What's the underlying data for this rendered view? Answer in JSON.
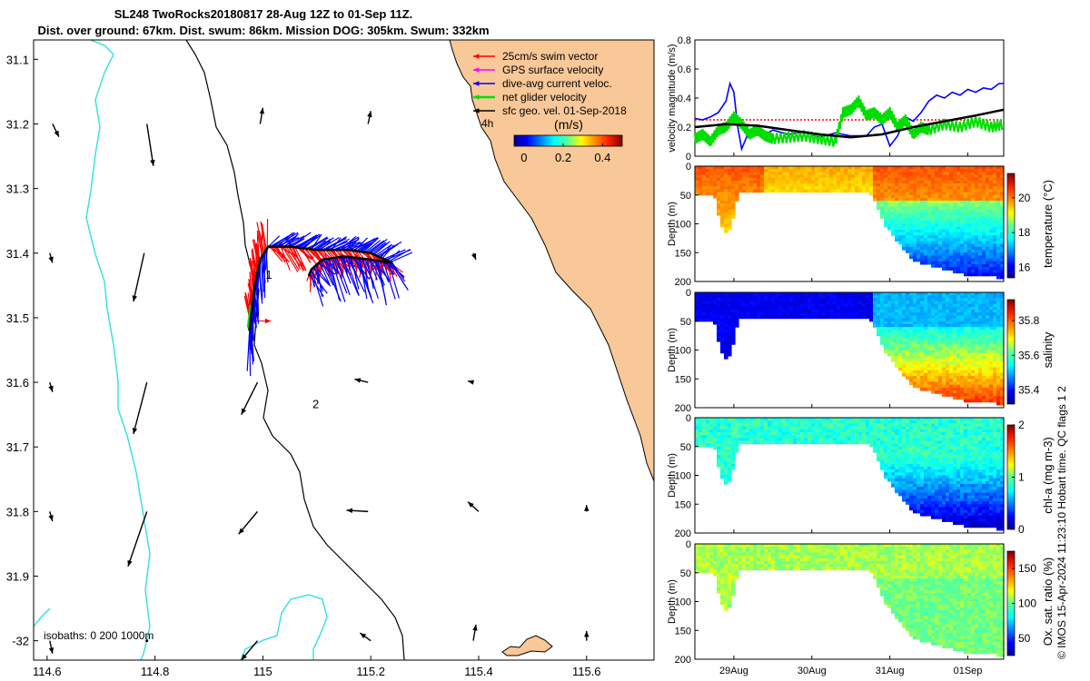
{
  "title": {
    "line1": "SL248 TwoRocks20180817 28-Aug 12Z to 01-Sep 11Z.",
    "line2": "Dist. over ground: 67km. Dist. swum: 86km. Mission DOG: 305km. Swum: 332km"
  },
  "credit": "© IMOS 15-Apr-2024 11:23:10 Hobart time. QC flags 1  2",
  "colors": {
    "land": "#f9c898",
    "isobath_shallow": "#000000",
    "isobath_deep": "#40e0e0",
    "swim": "#ff0000",
    "gps": "#ff00ff",
    "current": "#0000ff",
    "net": "#00dd00",
    "geo": "#000000"
  },
  "chart_data": [
    {
      "type": "map",
      "x_ticks": [
        "114.6",
        "114.8",
        "115",
        "115.2",
        "115.4",
        "115.6"
      ],
      "x_tick_values": [
        114.6,
        114.8,
        115.0,
        115.2,
        115.4,
        115.6
      ],
      "y_ticks": [
        "31.1",
        "31.2",
        "31.3",
        "31.4",
        "31.5",
        "31.6",
        "31.7",
        "31.8",
        "31.9",
        "-32"
      ],
      "y_tick_values": [
        -31.1,
        -31.2,
        -31.3,
        -31.4,
        -31.5,
        -31.6,
        -31.7,
        -31.8,
        -31.9,
        -32.0
      ],
      "xlim": [
        114.575,
        115.725
      ],
      "ylim": [
        -32.03,
        -31.07
      ],
      "legend": [
        {
          "label": "25cm/s swim vector",
          "color": "#ff0000"
        },
        {
          "label": "GPS surface velocity",
          "color": "#ff00ff"
        },
        {
          "label": "dive-avg current veloc.",
          "color": "#0000ff"
        },
        {
          "label": "net glider velocity",
          "color": "#00dd00"
        },
        {
          "label": "sfc geo. vel. 01-Sep-2018",
          "color": "#000000"
        }
      ],
      "legend_extra_label": "4h",
      "colorbar": {
        "label": "(m/s)",
        "ticks": [
          "0",
          "0.2",
          "0.4"
        ],
        "tick_values": [
          0,
          0.2,
          0.4
        ],
        "range": [
          -0.05,
          0.5
        ]
      },
      "isobath_label": "isobaths: 0   200  1000m",
      "annotations": [
        {
          "text": "1",
          "lon": 115.005,
          "lat": -31.44
        },
        {
          "text": "2",
          "lon": 115.092,
          "lat": -31.64
        }
      ],
      "geo_vectors": [
        {
          "lon": 114.61,
          "lat": -31.2,
          "u": 0.012,
          "v": -0.02
        },
        {
          "lon": 114.785,
          "lat": -31.2,
          "u": 0.012,
          "v": -0.065
        },
        {
          "lon": 114.995,
          "lat": -31.2,
          "u": 0.005,
          "v": 0.025
        },
        {
          "lon": 115.195,
          "lat": -31.2,
          "u": 0.005,
          "v": 0.02
        },
        {
          "lon": 114.605,
          "lat": -31.4,
          "u": 0.005,
          "v": -0.015
        },
        {
          "lon": 114.78,
          "lat": -31.4,
          "u": -0.02,
          "v": -0.075
        },
        {
          "lon": 115.39,
          "lat": -31.4,
          "u": 0.005,
          "v": -0.01
        },
        {
          "lon": 114.605,
          "lat": -31.6,
          "u": 0.005,
          "v": -0.015
        },
        {
          "lon": 114.785,
          "lat": -31.6,
          "u": -0.025,
          "v": -0.08
        },
        {
          "lon": 114.99,
          "lat": -31.6,
          "u": -0.03,
          "v": -0.05
        },
        {
          "lon": 115.195,
          "lat": -31.6,
          "u": -0.025,
          "v": 0.005
        },
        {
          "lon": 115.39,
          "lat": -31.6,
          "u": -0.01,
          "v": 0.002
        },
        {
          "lon": 114.605,
          "lat": -31.8,
          "u": 0.005,
          "v": -0.015
        },
        {
          "lon": 114.785,
          "lat": -31.8,
          "u": -0.035,
          "v": -0.085
        },
        {
          "lon": 114.99,
          "lat": -31.8,
          "u": -0.035,
          "v": -0.035
        },
        {
          "lon": 115.195,
          "lat": -31.8,
          "u": -0.04,
          "v": 0.002
        },
        {
          "lon": 115.4,
          "lat": -31.8,
          "u": -0.02,
          "v": 0.015
        },
        {
          "lon": 115.6,
          "lat": -31.8,
          "u": 0.0,
          "v": 0.01
        },
        {
          "lon": 114.605,
          "lat": -32.0,
          "u": 0.005,
          "v": -0.02
        },
        {
          "lon": 114.785,
          "lat": -32.0,
          "u": 0.0,
          "v": 0.0
        },
        {
          "lon": 114.99,
          "lat": -32.0,
          "u": -0.03,
          "v": -0.03
        },
        {
          "lon": 115.2,
          "lat": -32.0,
          "u": -0.02,
          "v": 0.012
        },
        {
          "lon": 115.39,
          "lat": -32.0,
          "u": 0.005,
          "v": 0.025
        },
        {
          "lon": 115.6,
          "lat": -32.0,
          "u": 0.0,
          "v": 0.015
        }
      ],
      "glider_track": [
        {
          "lon": 114.975,
          "lat": -31.52
        },
        {
          "lon": 114.985,
          "lat": -31.45
        },
        {
          "lon": 114.995,
          "lat": -31.41
        },
        {
          "lon": 115.01,
          "lat": -31.39
        },
        {
          "lon": 115.05,
          "lat": -31.39
        },
        {
          "lon": 115.1,
          "lat": -31.395
        },
        {
          "lon": 115.16,
          "lat": -31.395
        },
        {
          "lon": 115.2,
          "lat": -31.4
        },
        {
          "lon": 115.24,
          "lat": -31.415
        },
        {
          "lon": 115.2,
          "lat": -31.41
        },
        {
          "lon": 115.15,
          "lat": -31.405
        },
        {
          "lon": 115.11,
          "lat": -31.41
        },
        {
          "lon": 115.09,
          "lat": -31.425
        },
        {
          "lon": 115.085,
          "lat": -31.435
        }
      ]
    },
    {
      "type": "line",
      "ylabel": "velocity magnitude (m/s)",
      "ylim": [
        0,
        0.8
      ],
      "y_ticks": [
        "0",
        "0.2",
        "0.4",
        "0.6",
        "0.8"
      ],
      "y_tick_values": [
        0,
        0.2,
        0.4,
        0.6,
        0.8
      ],
      "x_ticks": [
        "29Aug",
        "30Aug",
        "31Aug",
        "01Sep"
      ],
      "x_tick_values": [
        0.5,
        1.5,
        2.5,
        3.5
      ],
      "xlim": [
        0,
        3.96
      ],
      "series": [
        {
          "name": "25cm/s swim vector",
          "color": "#ff0000",
          "t": [
            0,
            3.96
          ],
          "values": [
            0.25,
            0.25
          ]
        },
        {
          "name": "dive-avg current veloc.",
          "color": "#0000ff",
          "t": [
            0,
            0.1,
            0.2,
            0.3,
            0.4,
            0.45,
            0.5,
            0.55,
            0.6,
            0.7,
            0.8,
            0.9,
            1.0,
            1.2,
            1.4,
            1.6,
            1.8,
            2.0,
            2.2,
            2.3,
            2.4,
            2.5,
            2.6,
            2.7,
            2.8,
            2.9,
            3.0,
            3.1,
            3.2,
            3.3,
            3.4,
            3.5,
            3.6,
            3.7,
            3.8,
            3.9,
            3.96
          ],
          "values": [
            0.26,
            0.25,
            0.27,
            0.3,
            0.38,
            0.5,
            0.44,
            0.2,
            0.05,
            0.18,
            0.2,
            0.15,
            0.18,
            0.15,
            0.17,
            0.13,
            0.16,
            0.14,
            0.14,
            0.2,
            0.22,
            0.07,
            0.14,
            0.27,
            0.24,
            0.3,
            0.38,
            0.42,
            0.4,
            0.44,
            0.42,
            0.46,
            0.44,
            0.47,
            0.46,
            0.5,
            0.5
          ]
        },
        {
          "name": "net glider velocity",
          "color": "#00dd00",
          "t": [
            0,
            0.1,
            0.2,
            0.3,
            0.4,
            0.5,
            0.6,
            0.7,
            0.8,
            0.9,
            1.0,
            1.2,
            1.4,
            1.6,
            1.8,
            1.9,
            2.0,
            2.1,
            2.2,
            2.3,
            2.4,
            2.5,
            2.6,
            2.7,
            2.8,
            2.9,
            3.0,
            3.2,
            3.4,
            3.6,
            3.8,
            3.96
          ],
          "values": [
            0.12,
            0.15,
            0.1,
            0.18,
            0.2,
            0.27,
            0.22,
            0.15,
            0.18,
            0.14,
            0.12,
            0.13,
            0.14,
            0.12,
            0.1,
            0.3,
            0.32,
            0.38,
            0.28,
            0.3,
            0.25,
            0.3,
            0.2,
            0.25,
            0.15,
            0.2,
            0.18,
            0.22,
            0.2,
            0.24,
            0.2,
            0.22
          ]
        },
        {
          "name": "sfc geo. vel. 01-Sep-2018",
          "color": "#000000",
          "t": [
            0,
            0.4,
            0.8,
            1.2,
            1.6,
            2.0,
            2.4,
            2.8,
            3.2,
            3.6,
            3.96
          ],
          "values": [
            0.2,
            0.22,
            0.21,
            0.18,
            0.15,
            0.13,
            0.15,
            0.2,
            0.24,
            0.28,
            0.32
          ]
        }
      ]
    },
    {
      "type": "heatmap",
      "variable": "temperature (°C)",
      "cbar_label": "temperature (°C)",
      "cbar_ticks": [
        "16",
        "18",
        "20"
      ],
      "cbar_tick_values": [
        16,
        18,
        20
      ],
      "cbar_range": [
        15.4,
        21.4
      ],
      "ylabel": "Depth (m)",
      "y_ticks": [
        "50",
        "100",
        "150",
        "200"
      ],
      "y_tick_values": [
        50,
        100,
        150,
        200
      ],
      "ylim": [
        0,
        200
      ],
      "x_ticks": [
        "29Aug",
        "30Aug",
        "31Aug",
        "01Sep"
      ],
      "x_tick_values": [
        0.5,
        1.5,
        2.5,
        3.5
      ],
      "xlim": [
        0,
        3.96
      ],
      "surface_value": 20.5,
      "deep_value": 17.6
    },
    {
      "type": "heatmap",
      "variable": "salinity",
      "cbar_label": "salinity",
      "cbar_ticks": [
        "35.4",
        "35.6",
        "35.8"
      ],
      "cbar_tick_values": [
        35.4,
        35.6,
        35.8
      ],
      "cbar_range": [
        35.32,
        35.92
      ],
      "ylabel": "Depth (m)",
      "y_ticks": [
        "50",
        "100",
        "150",
        "200"
      ],
      "y_tick_values": [
        50,
        100,
        150,
        200
      ],
      "ylim": [
        0,
        200
      ],
      "x_ticks": [
        "29Aug",
        "30Aug",
        "31Aug",
        "01Sep"
      ],
      "x_tick_values": [
        0.5,
        1.5,
        2.5,
        3.5
      ],
      "xlim": [
        0,
        3.96
      ],
      "surface_value": 35.4,
      "deep_value": 35.7
    },
    {
      "type": "heatmap",
      "variable": "chl-a (mg m-3)",
      "cbar_label": "chl-a (mg m-3)",
      "cbar_ticks": [
        "0",
        "1",
        "2"
      ],
      "cbar_tick_values": [
        0,
        1,
        2
      ],
      "cbar_range": [
        0,
        2
      ],
      "ylabel": "Depth (m)",
      "y_ticks": [
        "50",
        "100",
        "150",
        "200"
      ],
      "y_tick_values": [
        50,
        100,
        150,
        200
      ],
      "ylim": [
        0,
        200
      ],
      "x_ticks": [
        "29Aug",
        "30Aug",
        "31Aug",
        "01Sep"
      ],
      "x_tick_values": [
        0.5,
        1.5,
        2.5,
        3.5
      ],
      "xlim": [
        0,
        3.96
      ],
      "surface_value": 0.9,
      "deep_value": 0.2
    },
    {
      "type": "heatmap",
      "variable": "Ox. sat. ratio (%)",
      "cbar_label": "Ox. sat. ratio (%)",
      "cbar_ticks": [
        "50",
        "100",
        "150"
      ],
      "cbar_tick_values": [
        50,
        100,
        150
      ],
      "cbar_range": [
        25,
        175
      ],
      "ylabel": "Depth (m)",
      "y_ticks": [
        "50",
        "100",
        "150",
        "200"
      ],
      "y_tick_values": [
        50,
        100,
        150,
        200
      ],
      "ylim": [
        0,
        200
      ],
      "x_ticks": [
        "29Aug",
        "30Aug",
        "31Aug",
        "01Sep"
      ],
      "x_tick_values": [
        0.5,
        1.5,
        2.5,
        3.5
      ],
      "xlim": [
        0,
        3.96
      ],
      "surface_value": 105,
      "deep_value": 100
    }
  ]
}
